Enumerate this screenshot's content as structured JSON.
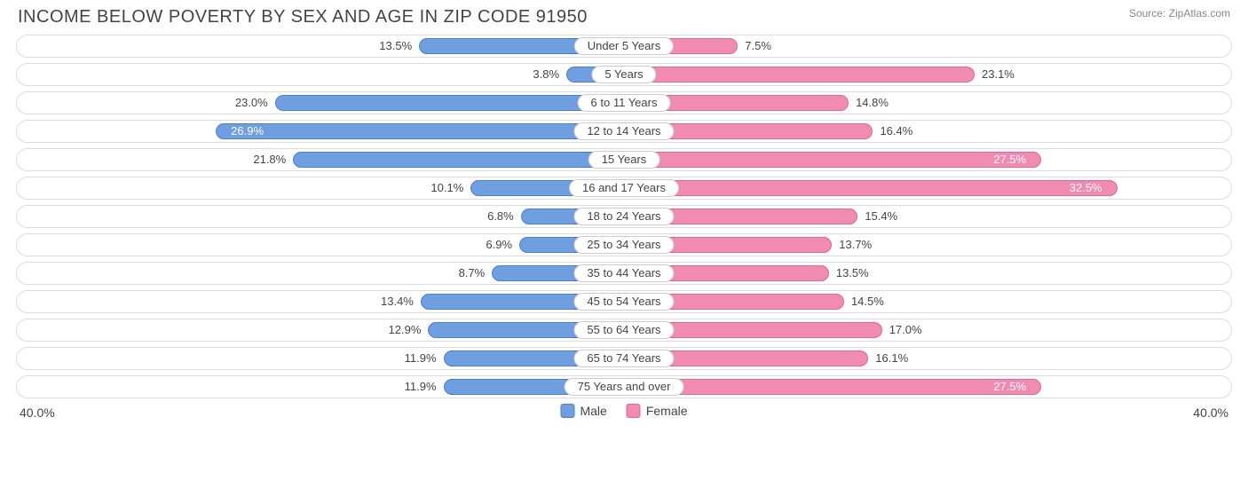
{
  "title": "INCOME BELOW POVERTY BY SEX AND AGE IN ZIP CODE 91950",
  "source": "Source: ZipAtlas.com",
  "chart": {
    "type": "diverging-bar",
    "axis_max": 40.0,
    "axis_max_label_left": "40.0%",
    "axis_max_label_right": "40.0%",
    "colors": {
      "male_fill": "#6f9fe0",
      "male_border": "#4d7fc9",
      "female_fill": "#f28bb1",
      "female_border": "#e06694",
      "track_border": "#dddddd",
      "pill_border": "#cccccc",
      "text": "#444444",
      "text_inside": "#ffffff",
      "background": "#ffffff"
    },
    "legend": [
      {
        "label": "Male",
        "color_key": "male_fill",
        "border_key": "male_border"
      },
      {
        "label": "Female",
        "color_key": "female_fill",
        "border_key": "female_border"
      }
    ],
    "rows": [
      {
        "category": "Under 5 Years",
        "male": 13.5,
        "female": 7.5,
        "male_label": "13.5%",
        "female_label": "7.5%"
      },
      {
        "category": "5 Years",
        "male": 3.8,
        "female": 23.1,
        "male_label": "3.8%",
        "female_label": "23.1%"
      },
      {
        "category": "6 to 11 Years",
        "male": 23.0,
        "female": 14.8,
        "male_label": "23.0%",
        "female_label": "14.8%"
      },
      {
        "category": "12 to 14 Years",
        "male": 26.9,
        "female": 16.4,
        "male_label": "26.9%",
        "female_label": "16.4%",
        "male_label_inside": true
      },
      {
        "category": "15 Years",
        "male": 21.8,
        "female": 27.5,
        "male_label": "21.8%",
        "female_label": "27.5%",
        "female_label_inside": true
      },
      {
        "category": "16 and 17 Years",
        "male": 10.1,
        "female": 32.5,
        "male_label": "10.1%",
        "female_label": "32.5%",
        "female_label_inside": true
      },
      {
        "category": "18 to 24 Years",
        "male": 6.8,
        "female": 15.4,
        "male_label": "6.8%",
        "female_label": "15.4%"
      },
      {
        "category": "25 to 34 Years",
        "male": 6.9,
        "female": 13.7,
        "male_label": "6.9%",
        "female_label": "13.7%"
      },
      {
        "category": "35 to 44 Years",
        "male": 8.7,
        "female": 13.5,
        "male_label": "8.7%",
        "female_label": "13.5%"
      },
      {
        "category": "45 to 54 Years",
        "male": 13.4,
        "female": 14.5,
        "male_label": "13.4%",
        "female_label": "14.5%"
      },
      {
        "category": "55 to 64 Years",
        "male": 12.9,
        "female": 17.0,
        "male_label": "12.9%",
        "female_label": "17.0%"
      },
      {
        "category": "65 to 74 Years",
        "male": 11.9,
        "female": 16.1,
        "male_label": "11.9%",
        "female_label": "16.1%"
      },
      {
        "category": "75 Years and over",
        "male": 11.9,
        "female": 27.5,
        "male_label": "11.9%",
        "female_label": "27.5%",
        "female_label_inside": true
      }
    ]
  }
}
